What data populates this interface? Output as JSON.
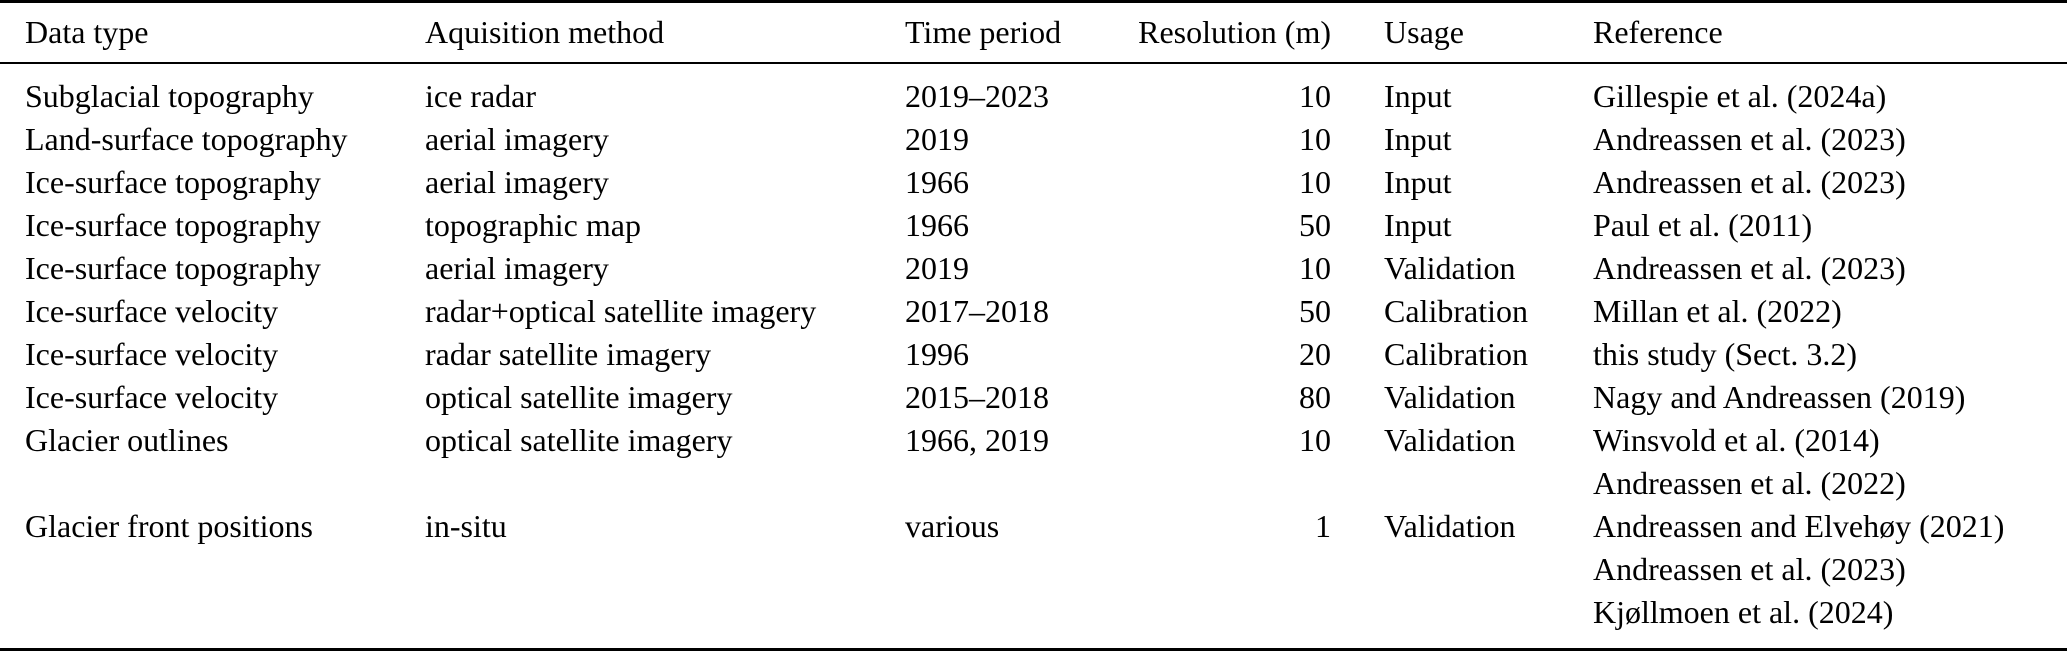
{
  "table": {
    "background": "#ffffff",
    "text_color": "#000000",
    "columns": [
      "Data type",
      "Aquisition method",
      "Time period",
      "Resolution (m)",
      "Usage",
      "Reference"
    ],
    "rows": [
      {
        "data_type": "Subglacial topography",
        "method": "ice radar",
        "period": "2019–2023",
        "resolution": "10",
        "usage": "Input",
        "references": [
          "Gillespie et al. (2024a)"
        ]
      },
      {
        "data_type": "Land-surface topography",
        "method": "aerial imagery",
        "period": "2019",
        "resolution": "10",
        "usage": "Input",
        "references": [
          "Andreassen et al. (2023)"
        ]
      },
      {
        "data_type": "Ice-surface topography",
        "method": "aerial imagery",
        "period": "1966",
        "resolution": "10",
        "usage": "Input",
        "references": [
          "Andreassen et al. (2023)"
        ]
      },
      {
        "data_type": "Ice-surface topography",
        "method": "topographic map",
        "period": "1966",
        "resolution": "50",
        "usage": "Input",
        "references": [
          "Paul et al. (2011)"
        ]
      },
      {
        "data_type": "Ice-surface topography",
        "method": "aerial imagery",
        "period": "2019",
        "resolution": "10",
        "usage": "Validation",
        "references": [
          "Andreassen et al. (2023)"
        ]
      },
      {
        "data_type": "Ice-surface velocity",
        "method": "radar+optical satellite imagery",
        "period": "2017–2018",
        "resolution": "50",
        "usage": "Calibration",
        "references": [
          "Millan et al. (2022)"
        ]
      },
      {
        "data_type": "Ice-surface velocity",
        "method": "radar satellite imagery",
        "period": "1996",
        "resolution": "20",
        "usage": "Calibration",
        "references": [
          "this study (Sect. 3.2)"
        ]
      },
      {
        "data_type": "Ice-surface velocity",
        "method": "optical satellite imagery",
        "period": "2015–2018",
        "resolution": "80",
        "usage": "Validation",
        "references": [
          "Nagy and Andreassen (2019)"
        ]
      },
      {
        "data_type": "Glacier outlines",
        "method": "optical satellite imagery",
        "period": "1966, 2019",
        "resolution": "10",
        "usage": "Validation",
        "references": [
          "Winsvold et al. (2014)",
          "Andreassen et al. (2022)"
        ]
      },
      {
        "data_type": "Glacier front positions",
        "method": "in-situ",
        "period": "various",
        "resolution": "1",
        "usage": "Validation",
        "references": [
          "Andreassen and Elvehøy (2021)",
          "Andreassen et al. (2023)",
          "Kjøllmoen et al. (2024)"
        ]
      }
    ]
  }
}
